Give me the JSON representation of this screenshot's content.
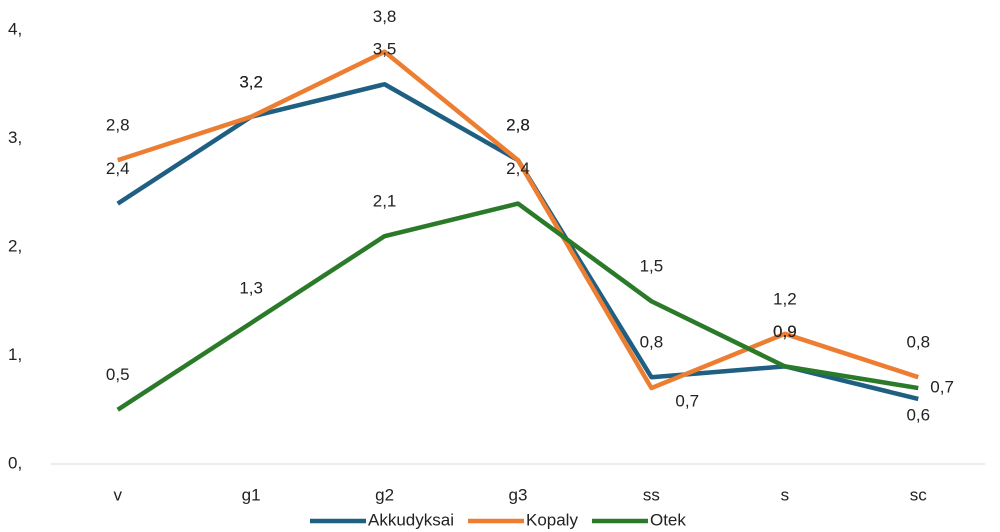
{
  "chart_data": {
    "type": "line",
    "categories": [
      "v",
      "g1",
      "g2",
      "g3",
      "ss",
      "s",
      "sc"
    ],
    "series": [
      {
        "name": "Akkudyksai",
        "color": "#1f5f82",
        "values": [
          2.4,
          3.2,
          3.5,
          2.8,
          0.8,
          0.9,
          0.6
        ],
        "value_labels": [
          "2,4",
          "3,2",
          "3,5",
          "2,8",
          "0,8",
          "0,9",
          "0,6"
        ]
      },
      {
        "name": "Kopaly",
        "color": "#ed7d31",
        "values": [
          2.8,
          3.2,
          3.8,
          2.8,
          0.7,
          1.2,
          0.8
        ],
        "value_labels": [
          "2,8",
          "3,2",
          "3,8",
          "2,8",
          "0,7",
          "1,2",
          "0,8"
        ]
      },
      {
        "name": "Otek",
        "color": "#2a7a2a",
        "values": [
          0.5,
          1.3,
          2.1,
          2.4,
          1.5,
          0.9,
          0.7
        ],
        "value_labels": [
          "0,5",
          "1,3",
          "2,1",
          "2,4",
          "1,5",
          "0,9",
          "0,7"
        ]
      }
    ],
    "ylim": [
      0,
      4
    ],
    "yticks": [
      {
        "value": 0,
        "label": "0,"
      },
      {
        "value": 1,
        "label": "1,"
      },
      {
        "value": 2,
        "label": "2,"
      },
      {
        "value": 3,
        "label": "3,"
      },
      {
        "value": 4,
        "label": "4,"
      }
    ],
    "legend": "bottom"
  }
}
